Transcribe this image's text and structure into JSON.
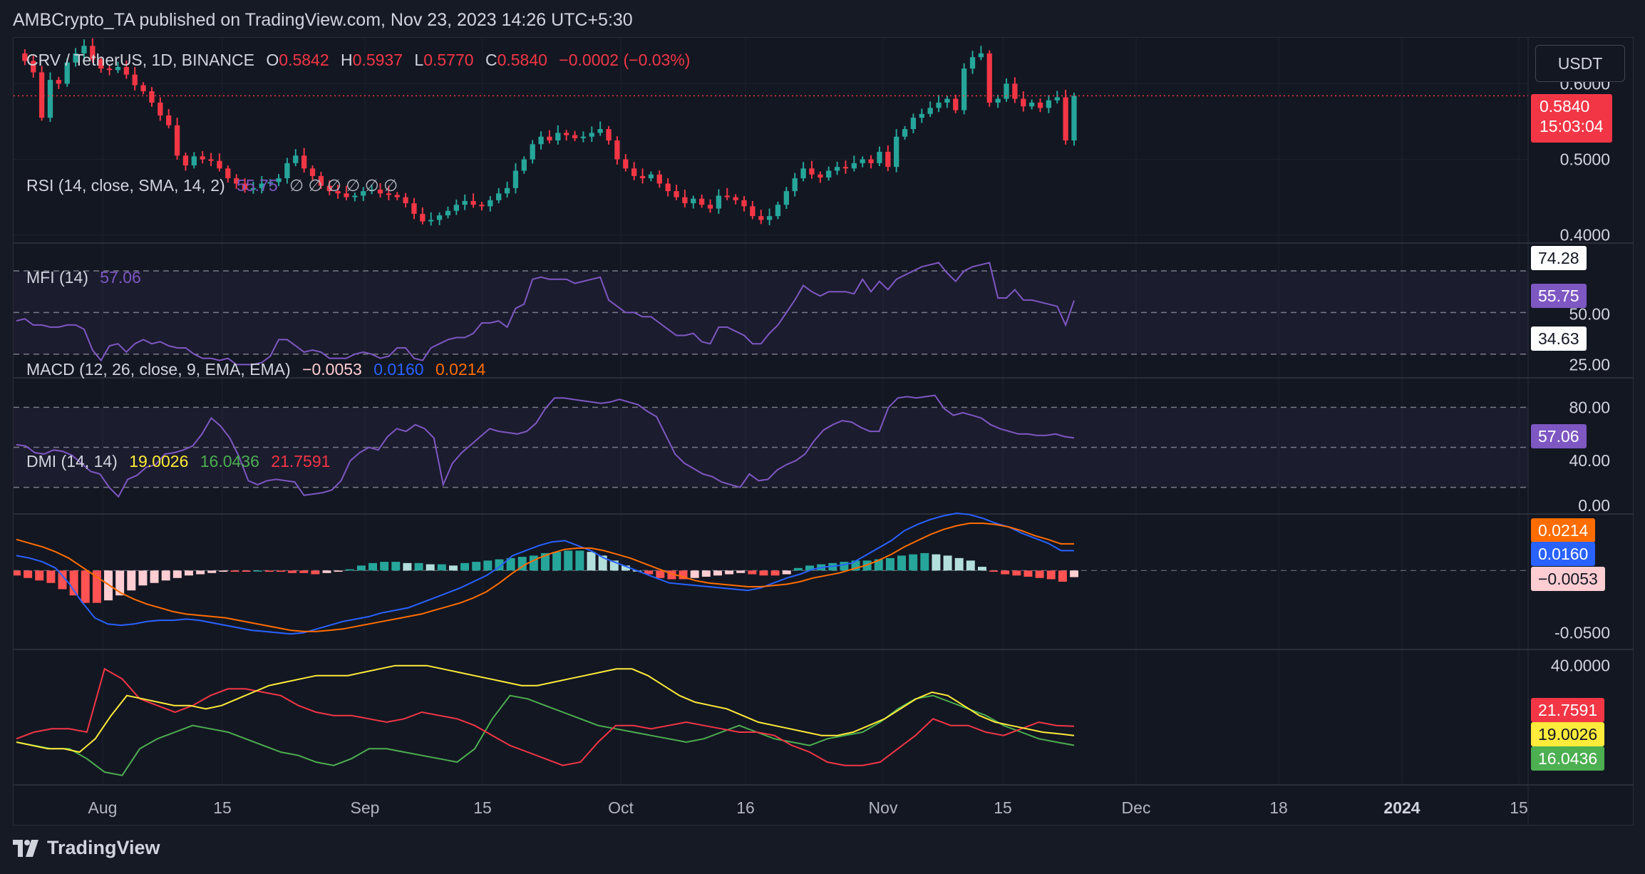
{
  "header": {
    "publish_text": "AMBCrypto_TA published on TradingView.com, Nov 23, 2023 14:26 UTC+5:30"
  },
  "branding": {
    "logo_text": "TradingView",
    "logo_icon": "tradingview-logo-icon"
  },
  "currency_button": "USDT",
  "colors": {
    "bg": "#131722",
    "up": "#26a69a",
    "down": "#f23645",
    "grid": "#1e222d",
    "rsi": "#7e57c2",
    "macd": "#2962ff",
    "signal": "#ff6d00",
    "di_plus": "#4caf50",
    "di_minus": "#f23645",
    "adx": "#ffeb3b"
  },
  "main_legend": {
    "symbol": "CRV / TetherUS, 1D, BINANCE",
    "o_label": "O",
    "o_value": "0.5842",
    "h_label": "H",
    "h_value": "0.5937",
    "l_label": "L",
    "l_value": "0.5770",
    "c_label": "C",
    "c_value": "0.5840",
    "change": "−0.0002 (−0.03%)"
  },
  "price_tag": {
    "price": "0.5840",
    "countdown": "15:03:04"
  },
  "rsi_legend": {
    "title": "RSI (14, close, SMA, 14, 2)",
    "value": "55.75",
    "extras": "∅ ∅ ∅ ∅ ∅ ∅"
  },
  "mfi_legend": {
    "title": "MFI (14)",
    "value": "57.06"
  },
  "macd_legend": {
    "title": "MACD (12, 26, close, 9, EMA, EMA)",
    "hist": "−0.0053",
    "macd": "0.0160",
    "signal": "0.0214"
  },
  "dmi_legend": {
    "title": "DMI (14, 14)",
    "adx": "19.0026",
    "plus": "16.0436",
    "minus": "21.7591"
  },
  "tags": {
    "rsi_upper": "74.28",
    "rsi": "55.75",
    "rsi_lower": "34.63",
    "mfi": "57.06",
    "macd_signal": "0.0214",
    "macd": "0.0160",
    "macd_hist": "−0.0053",
    "dmi_minus": "21.7591",
    "dmi_adx": "19.0026",
    "dmi_plus": "16.0436"
  },
  "chart_data": [
    {
      "type": "candlestick",
      "title": "CRV / TetherUS, 1D, BINANCE",
      "x_tick_labels": [
        "Aug",
        "15",
        "Sep",
        "15",
        "Oct",
        "16",
        "Nov",
        "15",
        "Dec",
        "18",
        "2024",
        "15"
      ],
      "y_tick_labels": [
        "0.6000",
        "0.5000",
        "0.4000"
      ],
      "ylim": [
        0.395,
        0.655
      ],
      "close_series": [
        0.64,
        0.63,
        0.615,
        0.555,
        0.605,
        0.6,
        0.628,
        0.64,
        0.65,
        0.632,
        0.62,
        0.618,
        0.622,
        0.612,
        0.598,
        0.59,
        0.575,
        0.558,
        0.545,
        0.505,
        0.492,
        0.504,
        0.5,
        0.498,
        0.488,
        0.475,
        0.468,
        0.46,
        0.462,
        0.468,
        0.47,
        0.475,
        0.495,
        0.505,
        0.488,
        0.478,
        0.465,
        0.458,
        0.455,
        0.45,
        0.452,
        0.458,
        0.46,
        0.455,
        0.453,
        0.45,
        0.442,
        0.428,
        0.418,
        0.42,
        0.426,
        0.432,
        0.44,
        0.445,
        0.44,
        0.438,
        0.446,
        0.455,
        0.462,
        0.485,
        0.5,
        0.52,
        0.53,
        0.525,
        0.535,
        0.532,
        0.528,
        0.53,
        0.535,
        0.54,
        0.525,
        0.5,
        0.488,
        0.478,
        0.475,
        0.48,
        0.468,
        0.458,
        0.45,
        0.442,
        0.448,
        0.44,
        0.435,
        0.452,
        0.45,
        0.446,
        0.438,
        0.425,
        0.42,
        0.425,
        0.44,
        0.458,
        0.475,
        0.488,
        0.48,
        0.476,
        0.485,
        0.49,
        0.488,
        0.495,
        0.5,
        0.495,
        0.51,
        0.49,
        0.53,
        0.54,
        0.555,
        0.56,
        0.568,
        0.575,
        0.58,
        0.565,
        0.62,
        0.635,
        0.64,
        0.575,
        0.58,
        0.6,
        0.58,
        0.57,
        0.575,
        0.568,
        0.578,
        0.582,
        0.525,
        0.584
      ]
    },
    {
      "type": "line",
      "title": "RSI (14, close, SMA, 14, 2)",
      "y_tick_labels": [
        "50.00",
        "25.00"
      ],
      "bands": [
        30,
        50,
        70
      ],
      "ylim": [
        20,
        82
      ],
      "last_value": 55.75,
      "upper_band_tag": 74.28,
      "lower_band_tag": 34.63,
      "values": [
        46,
        47,
        44,
        44,
        43,
        43,
        44,
        44,
        42,
        32,
        27,
        34,
        35,
        31,
        35,
        37,
        35,
        36,
        34,
        33,
        33,
        30,
        28,
        28,
        27,
        28,
        25,
        25,
        25,
        26,
        29,
        37,
        37,
        34,
        31,
        32,
        31,
        28,
        28,
        28,
        30,
        31,
        30,
        28,
        29,
        33,
        33,
        28,
        27,
        33,
        35,
        37,
        38,
        38,
        40,
        45,
        45,
        46,
        43,
        52,
        54,
        66,
        67,
        66,
        66,
        66,
        64,
        65,
        66,
        67,
        56,
        53,
        50,
        50,
        48,
        48,
        45,
        42,
        39,
        39,
        40,
        36,
        35,
        43,
        43,
        41,
        39,
        35,
        35,
        40,
        44,
        50,
        56,
        63,
        60,
        58,
        60,
        60,
        60,
        59,
        66,
        60,
        65,
        61,
        66,
        68,
        70,
        72,
        73,
        74,
        69,
        65,
        70,
        72,
        73,
        74,
        57,
        57,
        61,
        56,
        56,
        55,
        54,
        53,
        44,
        55.75
      ]
    },
    {
      "type": "line",
      "title": "MFI (14)",
      "y_tick_labels": [
        "80.00",
        "40.00",
        "0.00"
      ],
      "bands": [
        20,
        50,
        80
      ],
      "ylim": [
        0,
        100
      ],
      "last_value": 57.06,
      "values": [
        52,
        51,
        46,
        45,
        48,
        47,
        44,
        38,
        32,
        30,
        20,
        13,
        26,
        29,
        35,
        37,
        45,
        46,
        48,
        51,
        60,
        72,
        66,
        57,
        43,
        25,
        22,
        25,
        26,
        25,
        24,
        14,
        15,
        16,
        18,
        25,
        40,
        46,
        50,
        48,
        58,
        64,
        62,
        67,
        64,
        57,
        22,
        38,
        46,
        52,
        58,
        64,
        62,
        61,
        60,
        62,
        68,
        79,
        87,
        87,
        86,
        85,
        84,
        83,
        84,
        86,
        84,
        82,
        77,
        73,
        59,
        45,
        38,
        34,
        30,
        28,
        24,
        22,
        20,
        30,
        25,
        26,
        33,
        37,
        40,
        45,
        55,
        63,
        67,
        70,
        69,
        65,
        62,
        62,
        80,
        87,
        88,
        87,
        88,
        89,
        79,
        74,
        76,
        74,
        72,
        67,
        64,
        62,
        60,
        60,
        59,
        59,
        60,
        58,
        57.06
      ]
    },
    {
      "type": "line",
      "title": "MACD (12, 26, close, 9, EMA, EMA)",
      "y_tick_labels": [
        "-0.0500"
      ],
      "ylim": [
        -0.06,
        0.042
      ],
      "last_values": {
        "histogram": -0.0053,
        "macd": 0.016,
        "signal": 0.0214
      },
      "series": [
        {
          "name": "histogram",
          "values": [
            -0.004,
            -0.006,
            -0.008,
            -0.01,
            -0.015,
            -0.02,
            -0.026,
            -0.026,
            -0.024,
            -0.02,
            -0.016,
            -0.012,
            -0.01,
            -0.008,
            -0.006,
            -0.004,
            -0.003,
            -0.002,
            -0.001,
            -0.001,
            -0.001,
            0.0,
            -0.001,
            -0.001,
            -0.002,
            -0.002,
            -0.003,
            -0.002,
            -0.001,
            0.001,
            0.004,
            0.006,
            0.007,
            0.007,
            0.006,
            0.006,
            0.005,
            0.005,
            0.004,
            0.006,
            0.007,
            0.008,
            0.009,
            0.01,
            0.011,
            0.012,
            0.014,
            0.015,
            0.016,
            0.016,
            0.015,
            0.012,
            0.008,
            0.004,
            0.0,
            -0.003,
            -0.006,
            -0.007,
            -0.007,
            -0.006,
            -0.005,
            -0.004,
            -0.003,
            -0.002,
            -0.003,
            -0.004,
            -0.004,
            -0.003,
            0.002,
            0.004,
            0.005,
            0.006,
            0.007,
            0.008,
            0.008,
            0.009,
            0.01,
            0.012,
            0.013,
            0.014,
            0.013,
            0.012,
            0.01,
            0.008,
            0.003,
            -0.001,
            -0.003,
            -0.004,
            -0.005,
            -0.006,
            -0.007,
            -0.009,
            -0.0053
          ]
        },
        {
          "name": "MACD",
          "values": [
            0.012,
            0.01,
            0.007,
            0.002,
            -0.01,
            -0.025,
            -0.038,
            -0.043,
            -0.044,
            -0.043,
            -0.041,
            -0.04,
            -0.04,
            -0.039,
            -0.04,
            -0.042,
            -0.044,
            -0.046,
            -0.048,
            -0.049,
            -0.05,
            -0.051,
            -0.05,
            -0.047,
            -0.044,
            -0.041,
            -0.039,
            -0.037,
            -0.034,
            -0.032,
            -0.03,
            -0.026,
            -0.022,
            -0.018,
            -0.014,
            -0.009,
            -0.004,
            0.003,
            0.012,
            0.016,
            0.02,
            0.023,
            0.024,
            0.02,
            0.016,
            0.01,
            0.006,
            0.002,
            -0.002,
            -0.006,
            -0.01,
            -0.011,
            -0.012,
            -0.013,
            -0.014,
            -0.015,
            -0.016,
            -0.014,
            -0.01,
            -0.006,
            -0.003,
            0.001,
            0.003,
            0.004,
            0.006,
            0.012,
            0.018,
            0.024,
            0.032,
            0.037,
            0.041,
            0.044,
            0.046,
            0.045,
            0.042,
            0.038,
            0.035,
            0.03,
            0.026,
            0.022,
            0.016,
            0.016
          ]
        },
        {
          "name": "Signal",
          "values": [
            0.025,
            0.022,
            0.019,
            0.015,
            0.01,
            0.003,
            -0.004,
            -0.011,
            -0.018,
            -0.023,
            -0.027,
            -0.03,
            -0.033,
            -0.035,
            -0.036,
            -0.037,
            -0.038,
            -0.04,
            -0.042,
            -0.044,
            -0.046,
            -0.048,
            -0.049,
            -0.049,
            -0.048,
            -0.047,
            -0.045,
            -0.043,
            -0.041,
            -0.039,
            -0.037,
            -0.035,
            -0.032,
            -0.029,
            -0.026,
            -0.022,
            -0.017,
            -0.01,
            -0.002,
            0.005,
            0.01,
            0.014,
            0.017,
            0.018,
            0.018,
            0.016,
            0.013,
            0.01,
            0.006,
            0.002,
            -0.002,
            -0.005,
            -0.008,
            -0.01,
            -0.011,
            -0.012,
            -0.013,
            -0.013,
            -0.012,
            -0.011,
            -0.009,
            -0.006,
            -0.004,
            -0.002,
            0.001,
            0.004,
            0.008,
            0.013,
            0.019,
            0.024,
            0.029,
            0.033,
            0.036,
            0.038,
            0.038,
            0.037,
            0.035,
            0.032,
            0.028,
            0.025,
            0.0214,
            0.0214
          ]
        }
      ]
    },
    {
      "type": "line",
      "title": "DMI (14, 14)",
      "y_tick_labels": [
        "40.0000"
      ],
      "ylim": [
        5,
        44
      ],
      "series": [
        {
          "name": "ADX",
          "values": [
            17,
            16,
            15,
            15,
            14,
            18,
            25,
            31,
            30,
            29,
            28,
            28,
            27,
            28,
            30,
            32,
            34,
            35,
            36,
            37,
            37,
            37,
            38,
            39,
            40,
            40,
            40,
            39,
            38,
            37,
            36,
            35,
            34,
            34,
            35,
            36,
            37,
            38,
            39,
            39,
            37,
            34,
            31,
            29,
            28,
            27,
            25,
            23,
            22,
            21,
            20,
            19,
            19,
            20,
            22,
            24,
            27,
            30,
            32,
            31,
            28,
            25,
            23,
            22,
            21,
            20,
            19.5,
            19.0026
          ]
        },
        {
          "name": "+DI",
          "values": [
            17,
            16,
            15,
            15,
            12,
            8,
            7,
            15,
            18,
            20,
            22,
            21,
            20,
            18,
            16,
            14,
            13,
            11,
            10,
            12,
            15,
            15,
            14,
            13,
            12,
            11,
            15,
            24,
            31,
            30,
            28,
            26,
            24,
            22,
            21,
            20,
            19,
            18,
            17,
            18,
            20,
            22,
            20,
            18,
            17,
            16,
            18,
            19,
            20,
            23,
            27,
            30,
            31,
            29,
            27,
            25,
            22,
            20,
            18,
            17,
            16.0436
          ]
        },
        {
          "name": "-DI",
          "values": [
            18,
            20,
            21,
            21,
            20,
            39,
            36,
            30,
            28,
            26,
            28,
            31,
            33,
            33,
            32,
            31,
            28,
            26,
            25,
            25,
            24,
            23,
            24,
            26,
            25,
            24,
            22,
            19,
            16,
            14,
            12,
            10,
            11,
            17,
            22,
            22,
            21,
            22,
            23,
            22,
            21,
            20,
            20,
            19,
            16,
            14,
            11,
            10,
            10,
            11,
            15,
            19,
            24,
            22,
            22,
            20,
            19,
            21,
            23,
            22,
            21.7591
          ]
        }
      ]
    }
  ]
}
